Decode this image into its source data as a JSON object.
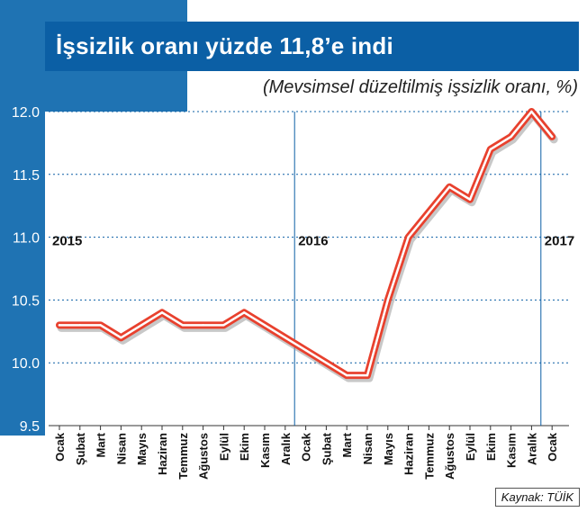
{
  "title": "İşsizlik oranı yüzde 11,8’e indi",
  "subtitle": "(Mevsimsel düzeltilmiş işsizlik oranı, %)",
  "source": "Kaynak: TÜİK",
  "colors": {
    "panel_blue": "#1f73b3",
    "title_blue": "#0b5fa5",
    "line_outer": "#e8412e",
    "line_inner": "#ffffff",
    "grid": "#0b5fa5"
  },
  "chart_data": {
    "type": "line",
    "title": "İşsizlik oranı yüzde 11,8’e indi",
    "subtitle": "(Mevsimsel düzeltilmiş işsizlik oranı, %)",
    "xlabel": "",
    "ylabel": "",
    "ylim": [
      9.5,
      12.0
    ],
    "yticks": [
      "9.5",
      "10.0",
      "10.5",
      "11.0",
      "11.5",
      "12.0"
    ],
    "grid": true,
    "categories": [
      "Ocak",
      "Şubat",
      "Mart",
      "Nisan",
      "Mayıs",
      "Haziran",
      "Temmuz",
      "Ağustos",
      "Eylül",
      "Ekim",
      "Kasım",
      "Aralık",
      "Ocak",
      "Şubat",
      "Mart",
      "Nisan",
      "Mayıs",
      "Haziran",
      "Temmuz",
      "Ağustos",
      "Eylül",
      "Ekim",
      "Kasım",
      "Aralık",
      "Ocak"
    ],
    "year_labels": [
      {
        "label": "2015",
        "index": 0
      },
      {
        "label": "2016",
        "index": 12
      },
      {
        "label": "2017",
        "index": 24
      }
    ],
    "values": [
      10.3,
      10.3,
      10.3,
      10.2,
      10.3,
      10.4,
      10.3,
      10.3,
      10.3,
      10.4,
      10.3,
      10.2,
      10.1,
      10.0,
      9.9,
      9.9,
      10.5,
      11.0,
      11.2,
      11.4,
      11.3,
      11.7,
      11.8,
      12.0,
      11.8
    ]
  }
}
